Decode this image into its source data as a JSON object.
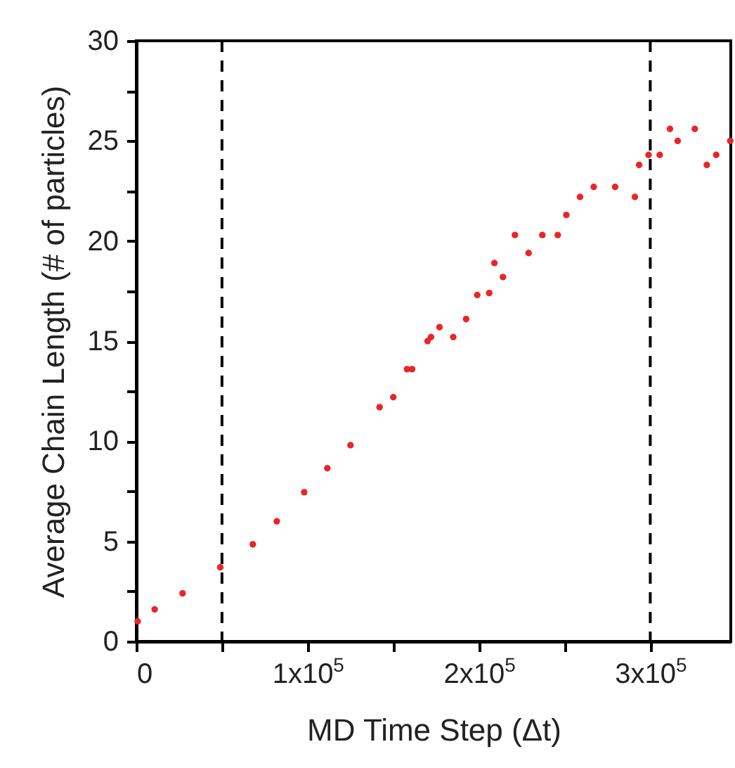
{
  "chart_data": {
    "type": "scatter",
    "xlabel": "MD Time Step (Δt)",
    "ylabel": "Average Chain Length (# of particles)",
    "x": [
      800,
      10700,
      27000,
      49000,
      68000,
      82000,
      98000,
      111500,
      125000,
      142000,
      150000,
      158000,
      161000,
      170000,
      172000,
      177000,
      185000,
      192500,
      199000,
      206000,
      209000,
      214000,
      221000,
      229000,
      237000,
      246000,
      251000,
      259000,
      267000,
      279500,
      291000,
      293500,
      299000,
      305500,
      311500,
      316000,
      326000,
      333000,
      338500,
      346700
    ],
    "values": [
      1.0,
      1.6,
      2.4,
      3.7,
      4.85,
      6.0,
      7.45,
      8.65,
      9.8,
      11.7,
      12.2,
      13.6,
      13.6,
      15.0,
      15.2,
      15.7,
      15.2,
      16.1,
      17.3,
      17.4,
      18.9,
      18.2,
      20.3,
      19.4,
      20.3,
      20.3,
      21.3,
      22.2,
      22.7,
      22.7,
      22.2,
      23.8,
      24.3,
      24.3,
      25.6,
      25.0,
      25.6,
      23.8,
      24.3,
      25.0
    ],
    "color": "#e8262a",
    "marker": "circle",
    "xlim": [
      0,
      347000
    ],
    "ylim": [
      0,
      30
    ],
    "xticks": [
      0,
      {
        "value": 50000,
        "label": null
      },
      {
        "value": 100000,
        "label": "1x10$^{5}$"
      },
      {
        "value": 150000,
        "label": null
      },
      {
        "value": 200000,
        "label": "2x10$^{5}$"
      },
      {
        "value": 250000,
        "label": null
      },
      {
        "value": 300000,
        "label": "3x10$^{5}$"
      }
    ],
    "yticks": [
      0,
      {
        "value": 2.5,
        "label": null
      },
      5,
      {
        "value": 7.5,
        "label": null
      },
      10,
      {
        "value": 12.5,
        "label": null
      },
      15,
      {
        "value": 17.5,
        "label": null
      },
      20,
      {
        "value": 22.5,
        "label": null
      },
      25,
      {
        "value": 27.5,
        "label": null
      },
      30
    ],
    "ref_lines": [
      {
        "axis": "x",
        "value": 50000,
        "color": "#000000",
        "line_style": "dashed"
      },
      {
        "axis": "x",
        "value": 300000,
        "color": "#000000",
        "line_style": "dashed"
      }
    ]
  }
}
